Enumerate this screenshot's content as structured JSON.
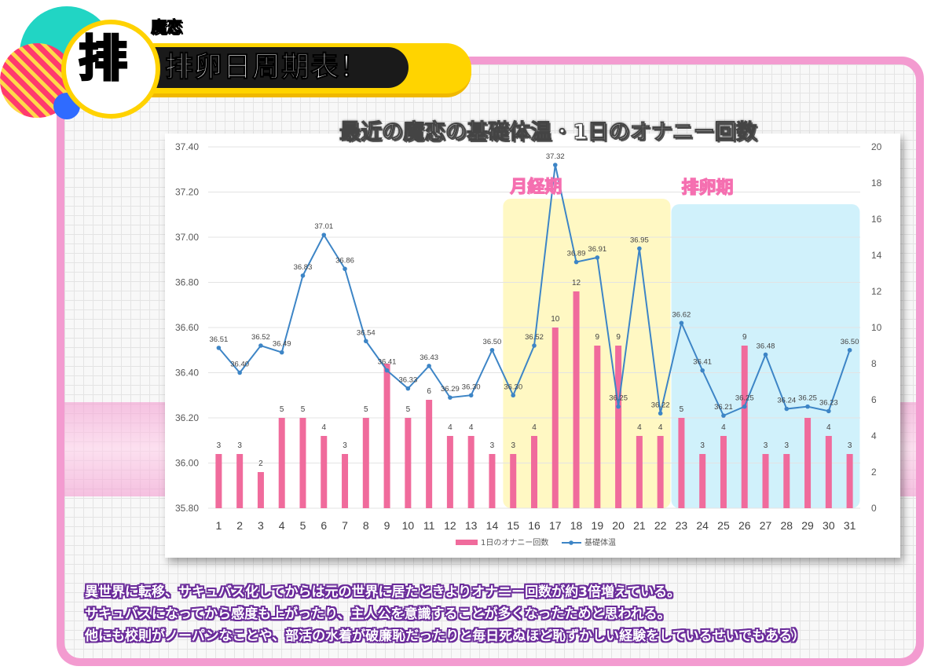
{
  "header": {
    "badge_kanji": "排",
    "name_tag": "魔恋",
    "title": "排卵日周期表！"
  },
  "chart_title": "最近の魔恋の基礎体温・1日のオナニー回数",
  "zones": [
    {
      "label": "月経期",
      "from_day": 15,
      "to_day": 22,
      "color": "#fff7b8"
    },
    {
      "label": "排卵期",
      "from_day": 23,
      "to_day": 31,
      "color": "#c8eefa"
    }
  ],
  "chart_data": {
    "type": "bar+line",
    "categories": [
      "1",
      "2",
      "3",
      "4",
      "5",
      "6",
      "7",
      "8",
      "9",
      "10",
      "11",
      "12",
      "13",
      "14",
      "15",
      "16",
      "17",
      "18",
      "19",
      "20",
      "21",
      "22",
      "23",
      "24",
      "25",
      "26",
      "27",
      "28",
      "29",
      "30",
      "31"
    ],
    "series": [
      {
        "name": "1日のオナニー回数",
        "type": "bar",
        "axis": "right",
        "color": "#f06b9c",
        "values": [
          3,
          3,
          2,
          5,
          5,
          4,
          3,
          5,
          8,
          5,
          6,
          4,
          4,
          3,
          3,
          4,
          10,
          12,
          9,
          9,
          4,
          4,
          5,
          3,
          4,
          9,
          3,
          3,
          5,
          4,
          3
        ],
        "value_labels": [
          "3",
          "3",
          "2",
          "5",
          "5",
          "4",
          "3",
          "5",
          "",
          "5",
          "6",
          "4",
          "4",
          "3",
          "3",
          "4",
          "10",
          "12",
          "9",
          "9",
          "4",
          "4",
          "5",
          "3",
          "4",
          "9",
          "3",
          "3",
          "",
          "4",
          "3"
        ]
      },
      {
        "name": "基礎体温",
        "type": "line",
        "axis": "left",
        "color": "#3d85c6",
        "values": [
          36.51,
          36.4,
          36.52,
          36.49,
          36.83,
          37.01,
          36.86,
          36.54,
          36.41,
          36.33,
          36.43,
          36.29,
          36.3,
          36.5,
          36.3,
          36.52,
          37.32,
          36.89,
          36.91,
          36.25,
          36.95,
          36.22,
          36.62,
          36.41,
          36.21,
          36.25,
          36.48,
          36.24,
          36.25,
          36.23,
          36.5
        ],
        "value_labels": [
          "36.51",
          "36.40",
          "36.52",
          "36.49",
          "36.83",
          "37.01",
          "36.86",
          "36.54",
          "36.41",
          "36.33",
          "36.43",
          "36.29",
          "36.30",
          "36.50",
          "36.30",
          "36.52",
          "37.32",
          "36.89",
          "36.91",
          "36.25",
          "36.95",
          "36.22",
          "36.62",
          "36.41",
          "36.21",
          "36.25",
          "36.48",
          "36.24",
          "36.25",
          "36.23",
          "36.50"
        ]
      }
    ],
    "y_left": {
      "min": 35.8,
      "max": 37.4,
      "ticks": [
        "35.80",
        "36.00",
        "36.20",
        "36.40",
        "36.60",
        "36.80",
        "37.00",
        "37.20",
        "37.40"
      ]
    },
    "y_right": {
      "min": 0,
      "max": 20,
      "ticks": [
        "0",
        "2",
        "4",
        "6",
        "8",
        "10",
        "12",
        "14",
        "16",
        "18",
        "20"
      ]
    },
    "grid": true,
    "legend": "bottom-center"
  },
  "caption_lines": [
    "異世界に転移、サキュバス化してからは元の世界に居たときよりオナニー回数が約3倍増えている。",
    "サキュバスになってから感度も上がったり、主人公を意識することが多くなったためと思われる。",
    "他にも校則がノーパンなことや、部活の水着が破廉恥だったりと毎日死ぬほど恥ずかしい経験をしているせいでもある）"
  ]
}
